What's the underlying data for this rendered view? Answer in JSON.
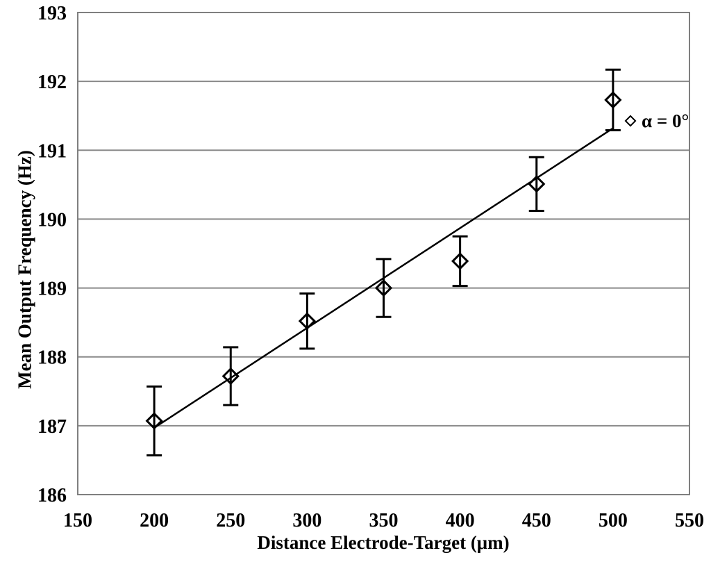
{
  "figure": {
    "background": "#ffffff"
  },
  "chart_data": {
    "type": "scatter",
    "title": "",
    "xlabel": "Distance Electrode-Target (μm)",
    "ylabel": "Mean Output Frequency (Hz)",
    "xlim": [
      150,
      550
    ],
    "ylim": [
      186,
      193
    ],
    "xticks": [
      150,
      200,
      250,
      300,
      350,
      400,
      450,
      500,
      550
    ],
    "yticks": [
      186,
      187,
      188,
      189,
      190,
      191,
      192,
      193
    ],
    "grid": "horizontal-only",
    "legend": {
      "label": "α = 0°",
      "marker": "open-diamond",
      "position": "inside-right"
    },
    "series": [
      {
        "name": "α = 0°",
        "marker": "open-diamond",
        "x": [
          200,
          250,
          300,
          350,
          400,
          450,
          500
        ],
        "y": [
          187.07,
          187.72,
          188.52,
          189.0,
          189.39,
          190.51,
          191.73
        ],
        "yerr": [
          0.5,
          0.42,
          0.4,
          0.42,
          0.36,
          0.39,
          0.44
        ]
      }
    ],
    "trendline": {
      "x": [
        200,
        500
      ],
      "y": [
        186.97,
        191.32
      ]
    }
  },
  "colors": {
    "axis_border": "#7f7f7f",
    "gridline": "#8a8a8a",
    "data": "#000000",
    "text": "#000000",
    "background": "#ffffff"
  }
}
